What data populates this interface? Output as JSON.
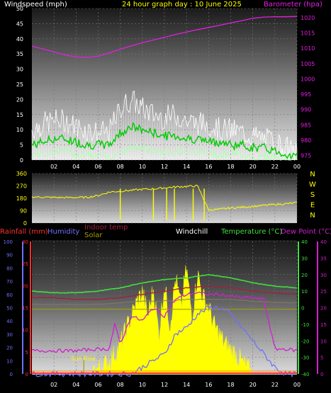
{
  "header": {
    "wind_title": "Windspeed (mph)",
    "date_title": "24 hour graph day : 10 June 2025",
    "baro_title": "Barometer (hpa)"
  },
  "colors": {
    "bg": "#000000",
    "wind_title": "#ffffff",
    "date_title": "#ffff00",
    "baro": "#e020e0",
    "wind_gust": "#ffffff",
    "wind_avg": "#00cc00",
    "wind_light": "#b0ffb0",
    "dir": "#ffff00",
    "rain": "#ff3030",
    "humidity": "#7070ff",
    "indoor": "#a02040",
    "solar": "#a0a000",
    "windchill": "#ffffff",
    "temp": "#40e040",
    "dew": "#d020d0"
  },
  "chart_data": [
    {
      "type": "line",
      "title": "24 hour graph day : 10 June 2025",
      "x_ticks": [
        "02",
        "04",
        "06",
        "08",
        "10",
        "12",
        "14",
        "16",
        "18",
        "20",
        "22",
        "00"
      ],
      "x_range": [
        0,
        24
      ],
      "ylabel": "Windspeed (mph)",
      "y_ticks": [
        "0",
        "5",
        "10",
        "15",
        "20",
        "25",
        "30",
        "35",
        "40",
        "45",
        "50"
      ],
      "ylim": [
        0,
        50
      ],
      "y2label": "Barometer (hpa)",
      "y2_ticks": [
        "975",
        "980",
        "985",
        "990",
        "995",
        "1000",
        "1005",
        "1010",
        "1015",
        "1020"
      ],
      "y2lim": [
        973.5,
        1023
      ],
      "series": [
        {
          "key": "gust",
          "axis": "left",
          "x": [
            0,
            1,
            2,
            3,
            4,
            5,
            6,
            7,
            8,
            9,
            10,
            11,
            12,
            13,
            14,
            15,
            16,
            17,
            18,
            19,
            20,
            21,
            22,
            23,
            24
          ],
          "values": [
            10,
            12,
            13,
            13,
            11,
            10,
            9,
            9,
            17,
            20,
            17,
            15,
            14,
            15,
            13,
            12,
            12,
            10,
            10,
            9,
            8,
            7,
            6,
            4,
            2
          ]
        },
        {
          "key": "avg",
          "axis": "left",
          "x": [
            0,
            1,
            2,
            3,
            4,
            5,
            6,
            7,
            8,
            9,
            10,
            11,
            12,
            13,
            14,
            15,
            16,
            17,
            18,
            19,
            20,
            21,
            22,
            23,
            24
          ],
          "values": [
            5,
            6,
            7,
            7,
            6,
            5,
            5,
            5,
            9,
            11,
            10,
            9,
            8,
            8,
            7,
            7,
            6,
            6,
            5,
            5,
            4,
            4,
            3,
            2,
            1
          ]
        },
        {
          "key": "lull",
          "axis": "left",
          "x": [
            0,
            1,
            2,
            3,
            4,
            5,
            6,
            7,
            8,
            9,
            10,
            11,
            12,
            13,
            14,
            15,
            16,
            17,
            18,
            19,
            20,
            21,
            22,
            23,
            24
          ],
          "values": [
            2,
            2,
            3,
            3,
            2,
            2,
            1,
            1,
            3,
            4,
            4,
            3,
            3,
            3,
            3,
            3,
            2,
            2,
            2,
            2,
            1,
            1,
            1,
            0,
            0
          ]
        },
        {
          "key": "pressure",
          "axis": "right",
          "x": [
            0,
            1,
            2,
            3,
            4,
            5,
            6,
            7,
            8,
            9,
            10,
            11,
            12,
            13,
            14,
            15,
            16,
            17,
            18,
            19,
            20,
            21,
            22,
            23,
            24
          ],
          "values": [
            1010.7,
            1009.8,
            1008.8,
            1007.8,
            1007.2,
            1007.0,
            1007.4,
            1008.5,
            1009.7,
            1010.8,
            1011.8,
            1012.7,
            1013.6,
            1014.5,
            1015.3,
            1016.1,
            1016.8,
            1017.5,
            1018.3,
            1019.0,
            1019.8,
            1020.2,
            1020.3,
            1020.3,
            1020.4
          ]
        }
      ]
    },
    {
      "type": "scatter",
      "title": "",
      "x_ticks": [
        "02",
        "04",
        "06",
        "08",
        "10",
        "12",
        "14",
        "16",
        "18",
        "20",
        "22",
        "00"
      ],
      "x_range": [
        0,
        24
      ],
      "ylabel": "",
      "y_ticks": [
        "0",
        "90",
        "180",
        "270",
        "360"
      ],
      "ylim": [
        0,
        360
      ],
      "y2_ticks": [
        "N",
        "W",
        "S",
        "E",
        "N"
      ],
      "series": [
        {
          "key": "direction",
          "x": [
            0,
            1,
            2,
            3,
            4,
            5,
            6,
            7,
            8,
            9,
            10,
            11,
            12,
            13,
            14,
            15,
            16,
            17,
            18,
            19,
            20,
            21,
            22,
            23,
            24
          ],
          "values": [
            190,
            188,
            186,
            185,
            186,
            187,
            200,
            225,
            232,
            238,
            245,
            248,
            256,
            262,
            266,
            270,
            95,
            100,
            110,
            115,
            122,
            128,
            135,
            140,
            148
          ]
        }
      ]
    },
    {
      "type": "line",
      "title": "",
      "x_ticks": [
        "02",
        "04",
        "06",
        "08",
        "10",
        "12",
        "14",
        "16",
        "18",
        "20",
        "22",
        "00"
      ],
      "x_range": [
        0,
        24
      ],
      "legend": [
        "Rainfall (mm)",
        "Humidity",
        "Indoor temp",
        "Solar",
        "Windchill",
        "Temperature (°C)",
        "Dew Point (°C)"
      ],
      "axes": {
        "humidity_ticks": [
          "0",
          "10",
          "20",
          "30",
          "40",
          "50",
          "60",
          "70",
          "80",
          "90",
          "100"
        ],
        "rain_ticks": [
          "0",
          "5",
          "10",
          "15",
          "20",
          "25",
          "30"
        ],
        "temp_ticks": [
          "40",
          "30",
          "20",
          "10",
          "0",
          "-10",
          "-20",
          "-30",
          "-40"
        ],
        "temp_ticks_right": [
          "40",
          "35",
          "30",
          "25",
          "20",
          "15",
          "10",
          "5",
          "0"
        ]
      },
      "annotation": "Sun Rise",
      "series": [
        {
          "key": "temperature",
          "x": [
            0,
            2,
            4,
            6,
            8,
            10,
            12,
            14,
            15,
            16,
            18,
            20,
            22,
            24
          ],
          "values": [
            10,
            9,
            9,
            10,
            12,
            15,
            17,
            18,
            19,
            20,
            18,
            15,
            13,
            12
          ]
        },
        {
          "key": "indoor",
          "x": [
            0,
            2,
            4,
            6,
            8,
            10,
            12,
            14,
            16,
            18,
            20,
            22,
            24
          ],
          "values": [
            6,
            6,
            5,
            5,
            6,
            8,
            10,
            12,
            13,
            12,
            10,
            9,
            8
          ]
        },
        {
          "key": "windchill",
          "x": [
            0,
            2,
            4,
            6,
            8,
            10,
            12,
            14,
            16,
            18,
            20,
            22,
            24
          ],
          "values": [
            2,
            2,
            2,
            2,
            3,
            4,
            4,
            5,
            5,
            5,
            4,
            3,
            3
          ]
        },
        {
          "key": "solar_flat",
          "x": [
            0,
            4,
            8,
            12,
            16,
            20,
            24
          ],
          "values": [
            0,
            0,
            0,
            0,
            0,
            0,
            0
          ]
        },
        {
          "key": "dewpoint",
          "x": [
            0,
            2,
            4,
            6,
            7,
            7.5,
            8,
            9,
            10,
            11,
            12,
            13,
            14,
            15,
            16,
            17,
            18,
            19,
            20,
            21,
            22,
            23,
            24
          ],
          "values": [
            -26,
            -26,
            -26,
            -25,
            -25,
            -10,
            -22,
            -5,
            -8,
            0,
            -5,
            5,
            8,
            9,
            8,
            8,
            7,
            6,
            6,
            5,
            -25,
            -25,
            -26
          ]
        },
        {
          "key": "humidity",
          "x": [
            0,
            2,
            4,
            6,
            7,
            8,
            9,
            10,
            11,
            12,
            13,
            14,
            15,
            16,
            17,
            18,
            19,
            20,
            21,
            22,
            23,
            24
          ],
          "values": [
            0,
            0,
            0,
            0,
            0,
            0,
            0,
            5,
            10,
            15,
            30,
            35,
            45,
            50,
            50,
            45,
            35,
            25,
            15,
            5,
            0,
            0
          ]
        },
        {
          "key": "rain",
          "x": [
            0,
            24
          ],
          "values": [
            0,
            0
          ]
        },
        {
          "key": "solar",
          "x": [
            5.5,
            6,
            6.5,
            7,
            7.5,
            8,
            8.5,
            9,
            9.5,
            10,
            10.5,
            11,
            11.5,
            12,
            12.5,
            13,
            13.5,
            14,
            14.5,
            15,
            15.5,
            16,
            16.5,
            17,
            17.5,
            18,
            18.5,
            19,
            19.5,
            20
          ],
          "values": [
            2,
            5,
            8,
            12,
            20,
            30,
            45,
            60,
            75,
            85,
            60,
            90,
            40,
            95,
            50,
            100,
            70,
            110,
            60,
            105,
            80,
            70,
            50,
            40,
            30,
            25,
            20,
            12,
            5,
            0
          ]
        }
      ]
    }
  ]
}
